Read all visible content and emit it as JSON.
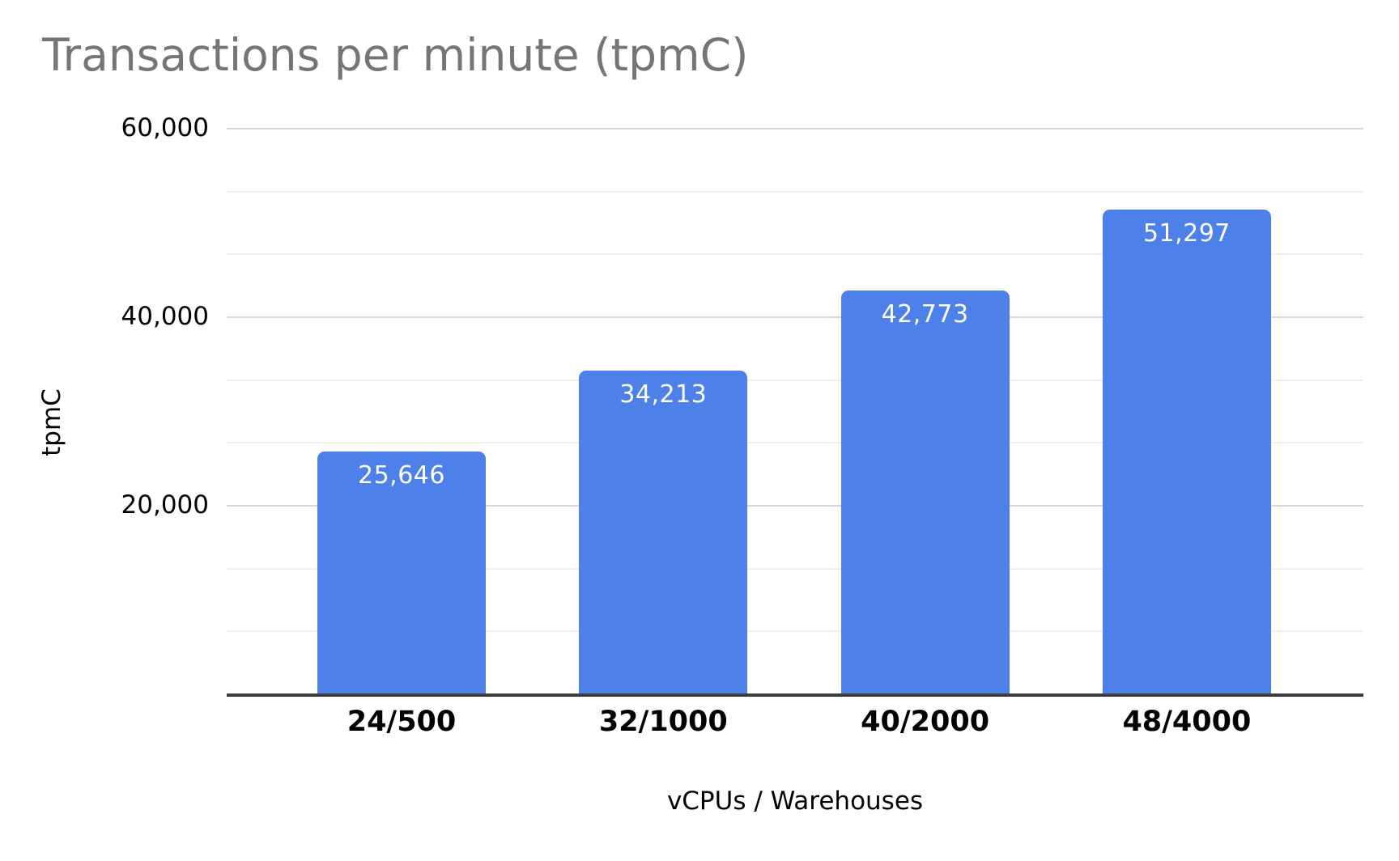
{
  "chart_data": {
    "type": "bar",
    "title": "Transactions per minute (tpmC)",
    "xlabel": "vCPUs / Warehouses",
    "ylabel": "tpmC",
    "categories": [
      "24/500",
      "32/1000",
      "40/2000",
      "48/4000"
    ],
    "values": [
      25646,
      34213,
      42773,
      51297
    ],
    "value_labels": [
      "25,646",
      "34,213",
      "42,773",
      "51,297"
    ],
    "ylim": [
      0,
      60000
    ],
    "yticks": [
      {
        "value": 20000,
        "label": "20,000"
      },
      {
        "value": 40000,
        "label": "40,000"
      },
      {
        "value": 60000,
        "label": "60,000"
      }
    ],
    "minor_gridlines": [
      6666.67,
      13333.33,
      26666.67,
      33333.33,
      46666.67,
      53333.33
    ],
    "grid": true,
    "legend": "none",
    "colors": {
      "bar": "#4e80ea",
      "value_label": "#ffffff",
      "title": "#757575",
      "axis_text": "#000000",
      "major_gridline": "#d7d7d7",
      "minor_gridline": "#efefef",
      "axis_line": "#3c3c3c",
      "background": "#ffffff"
    }
  }
}
